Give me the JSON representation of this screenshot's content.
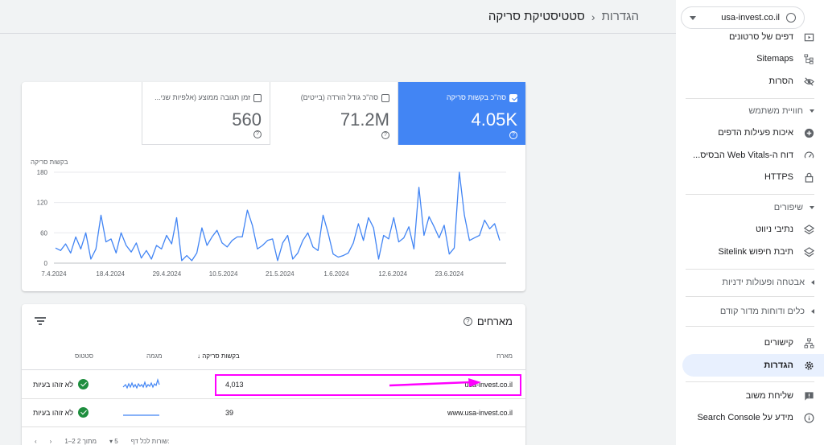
{
  "header": {
    "breadcrumb": "הגדרות",
    "title": "סטטיסטיקת סריקה"
  },
  "sidebar": {
    "property": "usa-invest.co.il",
    "items": [
      {
        "label": "דפים של סרטונים",
        "icon": "video-page-icon"
      },
      {
        "label": "Sitemaps",
        "icon": "sitemap-icon"
      },
      {
        "label": "הסרות",
        "icon": "eye-off-icon"
      },
      {
        "label": "חוויית משתמש",
        "section": true
      },
      {
        "label": "איכות פעילות הדפים",
        "icon": "plus-circle-icon"
      },
      {
        "label": "דוח ה-Web Vitals הבסיס...",
        "icon": "speed-gauge-icon"
      },
      {
        "label": "HTTPS",
        "icon": "lock-icon"
      },
      {
        "label": "שיפורים",
        "section": true
      },
      {
        "label": "נתיבי ניווט",
        "icon": "layers-icon"
      },
      {
        "label": "תיבת חיפוש Sitelink",
        "icon": "layers-icon"
      },
      {
        "label": "אבטחה ופעולות ידניות",
        "section": true
      },
      {
        "label": "כלים ודוחות מדור קודם",
        "section": true
      },
      {
        "label": "קישורים",
        "icon": "links-icon"
      },
      {
        "label": "הגדרות",
        "icon": "gear-icon",
        "active": true
      },
      {
        "label": "שליחת משוב",
        "icon": "feedback-icon"
      },
      {
        "label": "מידע על Search Console",
        "icon": "info-icon"
      }
    ]
  },
  "metrics": [
    {
      "label": "סה\"כ בקשות סריקה",
      "value": "4.05K",
      "active": true
    },
    {
      "label": "סה\"כ גודל הורדה (בייטים)",
      "value": "71.2M",
      "active": false
    },
    {
      "label": "זמן תגובה ממוצע (אלפיות שני...",
      "value": "560",
      "active": false
    }
  ],
  "chart_data": {
    "type": "line",
    "ylabel": "בקשות סריקה",
    "ylim": [
      0,
      180
    ],
    "yticks": [
      "180",
      "120",
      "60",
      "0"
    ],
    "xticks": [
      "7.4.2024",
      "18.4.2024",
      "29.4.2024",
      "10.5.2024",
      "21.5.2024",
      "1.6.2024",
      "12.6.2024",
      "23.6.2024"
    ],
    "color": "#4285f4",
    "series": [
      {
        "values": [
          30,
          25,
          38,
          20,
          52,
          28,
          60,
          8,
          28,
          95,
          42,
          48,
          20,
          60,
          35,
          22,
          40,
          10,
          25,
          8,
          35,
          28,
          55,
          38,
          90,
          5,
          15,
          5,
          20,
          70,
          35,
          52,
          65,
          40,
          32,
          45,
          52,
          52,
          105,
          75,
          28,
          35,
          45,
          48,
          5,
          40,
          55,
          8,
          20,
          45,
          60,
          32,
          25,
          95,
          60,
          18,
          12,
          15,
          20,
          40,
          78,
          45,
          90,
          70,
          8,
          55,
          48,
          90,
          42,
          50,
          72,
          28,
          150,
          55,
          92,
          72,
          50,
          75,
          18,
          30,
          180,
          95,
          45,
          50,
          55,
          85,
          68,
          78,
          45
        ]
      }
    ]
  },
  "hosts": {
    "title": "מארחים",
    "columns": {
      "host": "מארח",
      "requests": "בקשות סריקה",
      "trend": "מגמה",
      "status": "סטטוס"
    },
    "rows": [
      {
        "host": "usa-invest.co.il",
        "requests": "4,013",
        "status": "לא זוהו בעיות"
      },
      {
        "host": "www.usa-invest.co.il",
        "requests": "39",
        "status": "לא זוהו בעיות"
      }
    ],
    "pager": {
      "rows_per_page_label": "שורות לכל דף:",
      "rows_per_page": "5",
      "range": "1–2 מתוך 2"
    }
  },
  "colors": {
    "accent": "#4285f4",
    "highlight": "#ff00ff",
    "ok": "#1e8e3e"
  }
}
